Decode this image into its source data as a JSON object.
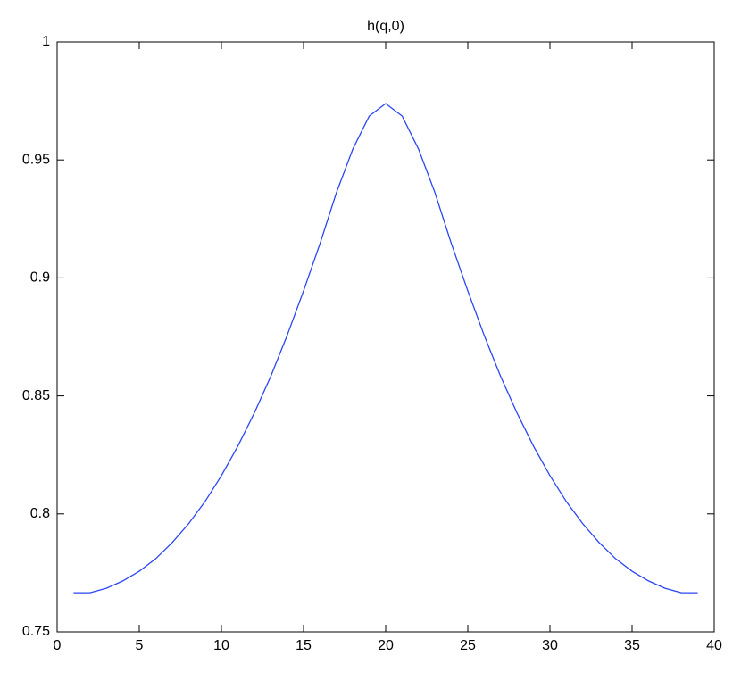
{
  "chart_data": {
    "type": "line",
    "title": "h(q,0)",
    "x": [
      1,
      2,
      3,
      4,
      5,
      6,
      7,
      8,
      9,
      10,
      11,
      12,
      13,
      14,
      15,
      16,
      17,
      18,
      19,
      20,
      21,
      22,
      23,
      24,
      25,
      26,
      27,
      28,
      29,
      30,
      31,
      32,
      33,
      34,
      35,
      36,
      37,
      38,
      39
    ],
    "series": [
      {
        "color": "#2a45f5",
        "values": [
          0.7666,
          0.7666,
          0.7685,
          0.7716,
          0.7757,
          0.781,
          0.7878,
          0.7958,
          0.8052,
          0.8162,
          0.8287,
          0.8427,
          0.8582,
          0.8756,
          0.8945,
          0.9145,
          0.9361,
          0.9546,
          0.9686,
          0.9739,
          0.9686,
          0.9546,
          0.9361,
          0.9145,
          0.8945,
          0.8756,
          0.8582,
          0.8427,
          0.8287,
          0.8162,
          0.8052,
          0.7958,
          0.7878,
          0.781,
          0.7757,
          0.7716,
          0.7685,
          0.7666,
          0.7666
        ]
      }
    ],
    "xlim": [
      0,
      40
    ],
    "xticks": [
      0,
      5,
      10,
      15,
      20,
      25,
      30,
      35,
      40
    ],
    "ylim": [
      0.75,
      1
    ],
    "yticks": [
      0.75,
      0.8,
      0.85,
      0.9,
      0.95,
      1
    ],
    "grid": false
  }
}
